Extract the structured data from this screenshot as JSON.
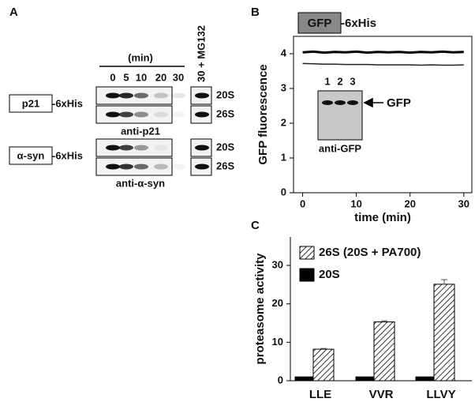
{
  "panel_a": {
    "label": "A",
    "unit": "(min)",
    "lanes": [
      "0",
      "5",
      "10",
      "20",
      "30",
      "30 + MG132"
    ],
    "blots": [
      {
        "protein": "p21",
        "tag": "-6xHis",
        "rows": [
          "20S",
          "26S"
        ],
        "antibody": "anti-p21"
      },
      {
        "protein": "α-syn",
        "tag": "-6xHis",
        "rows": [
          "20S",
          "26S"
        ],
        "antibody": "anti-α-syn"
      }
    ]
  },
  "chart_data": [
    {
      "type": "line",
      "panel": "B",
      "construct_protein": "GFP",
      "construct_tag": "-6xHis",
      "y_label": "GFP fluorescence",
      "x_label": "time (min)",
      "x": [
        0,
        2,
        4,
        6,
        8,
        10,
        12,
        14,
        16,
        18,
        20,
        22,
        24,
        26,
        28,
        30
      ],
      "series": [
        {
          "color": "#000000",
          "values": [
            4.04,
            4.06,
            4.03,
            4.05,
            4.04,
            4.06,
            4.03,
            4.05,
            4.04,
            4.05,
            4.03,
            4.05,
            4.04,
            4.06,
            4.04,
            4.05
          ]
        },
        {
          "color": "#222222",
          "values": [
            3.72,
            3.71,
            3.7,
            3.7,
            3.69,
            3.69,
            3.69,
            3.68,
            3.68,
            3.68,
            3.68,
            3.67,
            3.68,
            3.67,
            3.67,
            3.68
          ]
        }
      ],
      "xlim": [
        -1.7,
        31.5
      ],
      "xticks": [
        0,
        10,
        20,
        30
      ],
      "ylim": [
        0,
        4.5
      ],
      "yticks": [
        0,
        1,
        2,
        3,
        4
      ],
      "inset": {
        "lanes": [
          "1",
          "2",
          "3"
        ],
        "band": "GFP",
        "antibody": "anti-GFP"
      }
    },
    {
      "type": "bar",
      "panel": "C",
      "y_label": "proteasome activity",
      "categories": [
        "LLE",
        "VVR",
        "LLVY"
      ],
      "series": [
        {
          "name": "26S (20S + PA700)",
          "color": "hatch",
          "values": [
            8.2,
            15.3,
            25.1
          ],
          "errors": [
            0.2,
            0.3,
            1.2
          ]
        },
        {
          "name": "20S",
          "color": "#000000",
          "values": [
            1,
            1,
            1
          ]
        }
      ],
      "ylim": [
        0,
        37.4
      ],
      "yticks": [
        0,
        10,
        20,
        30
      ]
    }
  ]
}
